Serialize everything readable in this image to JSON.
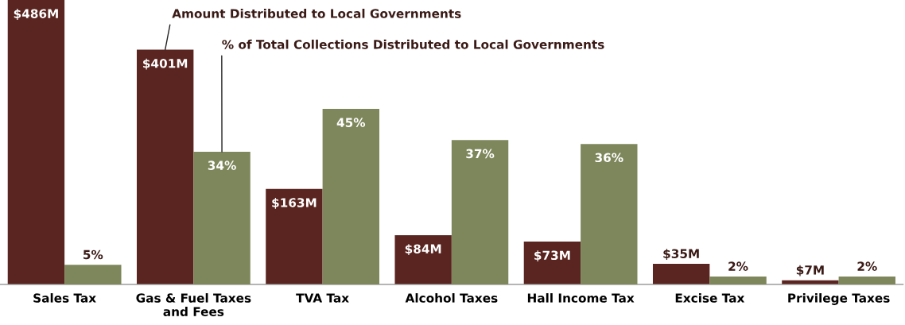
{
  "chart_data": {
    "type": "bar",
    "categories": [
      "Sales Tax",
      "Gas & Fuel Taxes\nand Fees",
      "TVA Tax",
      "Alcohol Taxes",
      "Hall Income Tax",
      "Excise Tax",
      "Privilege Taxes"
    ],
    "series": [
      {
        "name": "Amount Distributed to Local Governments",
        "color": "#5a2520",
        "values": [
          486,
          401,
          163,
          84,
          73,
          35,
          7
        ],
        "value_labels": [
          "$486M",
          "$401M",
          "$163M",
          "$84M",
          "$73M",
          "$35M",
          "$7M"
        ]
      },
      {
        "name": "% of Total Collections Distributed to Local Governments",
        "color": "#7e875b",
        "axis": "y2",
        "values": [
          5,
          34,
          45,
          37,
          36,
          2,
          2
        ],
        "value_labels": [
          "5%",
          "34%",
          "45%",
          "37%",
          "36%",
          "2%",
          "2%"
        ]
      }
    ],
    "tick_labels": "x",
    "grid": false,
    "legend": false
  }
}
